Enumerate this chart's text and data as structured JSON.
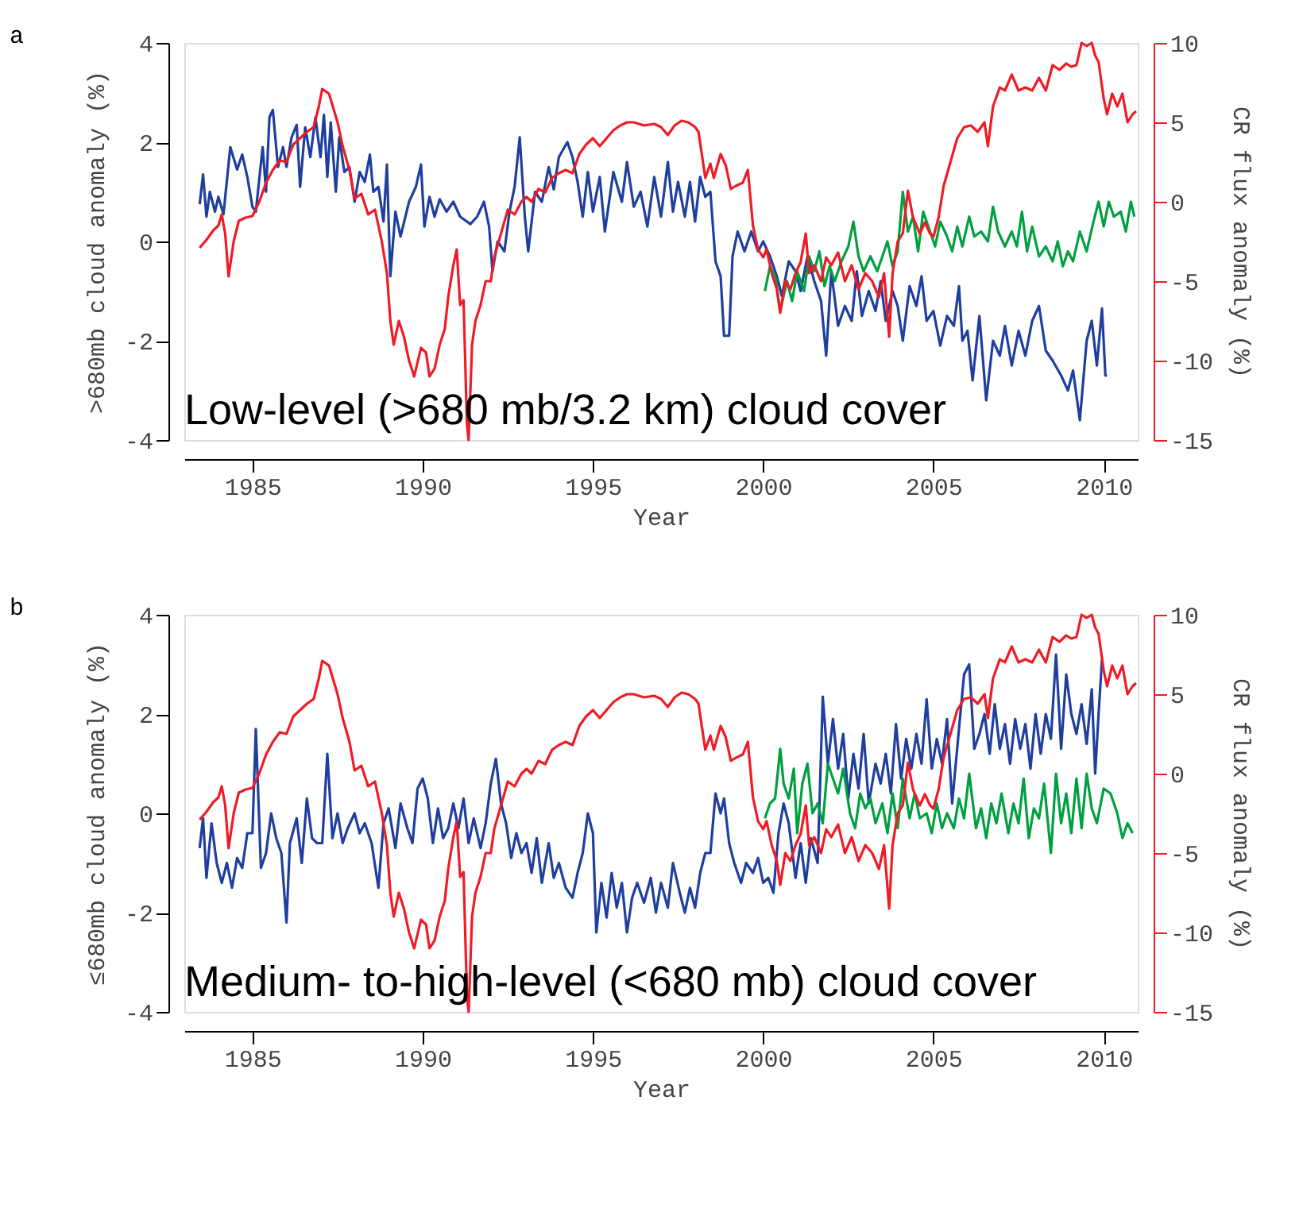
{
  "chart_data": [
    {
      "type": "line",
      "xlabel": "Year",
      "ylabel": ">680mb cloud anomaly (%)",
      "y2label": "CR flux anomaly (%)",
      "xlim": [
        1983,
        2011
      ],
      "xticks": [
        1985,
        1990,
        1995,
        2000,
        2005,
        2010
      ],
      "ylim": [
        -4,
        4
      ],
      "yticks": [
        -4,
        -2,
        0,
        2,
        4
      ],
      "y2lim": [
        -15,
        10
      ],
      "y2ticks": [
        -15,
        -10,
        -5,
        0,
        5,
        10
      ],
      "grid": false,
      "annotations": [
        "a",
        "Low-level (>680 mb/3.2 km) cloud cover"
      ],
      "series": [
        {
          "color": "#1f3f9f",
          "x": [
            1983.45,
            1983.55,
            1983.65,
            1983.75,
            1983.9,
            1984.0,
            1984.15,
            1984.35,
            1984.55,
            1984.7,
            1984.85,
            1985.0,
            1985.1,
            1985.3,
            1985.4,
            1985.5,
            1985.6,
            1985.75,
            1985.9,
            1986.0,
            1986.15,
            1986.3,
            1986.4,
            1986.55,
            1986.7,
            1986.85,
            1987.0,
            1987.1,
            1987.2,
            1987.3,
            1987.45,
            1987.55,
            1987.7,
            1987.85,
            1988.0,
            1988.15,
            1988.3,
            1988.45,
            1988.55,
            1988.7,
            1988.85,
            1988.95,
            1989.05,
            1989.2,
            1989.35,
            1989.6,
            1989.8,
            1989.95,
            1990.05,
            1990.2,
            1990.35,
            1990.5,
            1990.7,
            1990.9,
            1991.1,
            1991.4,
            1991.6,
            1991.8,
            1991.95,
            1992.05,
            1992.2,
            1992.4,
            1992.55,
            1992.7,
            1992.85,
            1993.0,
            1993.1,
            1993.3,
            1993.5,
            1993.7,
            1993.85,
            1994.0,
            1994.25,
            1994.4,
            1994.55,
            1994.7,
            1994.85,
            1995.0,
            1995.2,
            1995.35,
            1995.6,
            1995.85,
            1996.0,
            1996.2,
            1996.4,
            1996.6,
            1996.8,
            1997.0,
            1997.2,
            1997.35,
            1997.5,
            1997.7,
            1997.85,
            1998.0,
            1998.15,
            1998.3,
            1998.45,
            1998.6,
            1998.75,
            1998.85,
            1999.0,
            1999.1,
            1999.25,
            1999.45,
            1999.65,
            1999.85,
            2000.0,
            2000.2,
            2000.4,
            2000.55,
            2000.75,
            2000.95,
            2001.1,
            2001.3,
            2001.5,
            2001.7,
            2001.85,
            2002.0,
            2002.2,
            2002.4,
            2002.6,
            2002.75,
            2002.9,
            2003.1,
            2003.3,
            2003.45,
            2003.6,
            2003.8,
            2003.95,
            2004.1,
            2004.3,
            2004.5,
            2004.65,
            2004.8,
            2005.0,
            2005.2,
            2005.4,
            2005.6,
            2005.75,
            2005.85,
            2006.0,
            2006.15,
            2006.35,
            2006.55,
            2006.75,
            2006.95,
            2007.1,
            2007.3,
            2007.5,
            2007.7,
            2007.9,
            2008.1,
            2008.3,
            2008.5,
            2008.75,
            2008.95,
            2009.1,
            2009.3,
            2009.5,
            2009.65,
            2009.8,
            2009.95,
            2010.05,
            2010.1
          ],
          "values": [
            0.75,
            1.35,
            0.5,
            1.0,
            0.6,
            0.9,
            0.55,
            1.9,
            1.45,
            1.75,
            1.3,
            0.7,
            0.6,
            1.9,
            1.0,
            2.5,
            2.65,
            1.5,
            1.9,
            1.5,
            2.1,
            2.35,
            1.1,
            2.3,
            1.7,
            2.5,
            1.7,
            2.55,
            1.3,
            2.4,
            1.0,
            2.1,
            1.4,
            1.5,
            0.8,
            1.4,
            1.2,
            1.75,
            1.0,
            1.1,
            0.4,
            1.55,
            -0.7,
            0.6,
            0.1,
            0.8,
            1.1,
            1.55,
            0.3,
            0.9,
            0.5,
            0.85,
            0.6,
            0.8,
            0.5,
            0.35,
            0.5,
            0.8,
            0.3,
            -0.6,
            0.0,
            -0.2,
            0.6,
            1.1,
            2.1,
            0.5,
            -0.2,
            1.0,
            0.8,
            1.5,
            1.05,
            1.7,
            2.0,
            1.7,
            1.2,
            0.5,
            1.4,
            0.6,
            1.3,
            0.2,
            1.4,
            0.8,
            1.6,
            0.7,
            1.0,
            0.3,
            1.3,
            0.5,
            1.6,
            0.6,
            1.2,
            0.5,
            1.2,
            0.4,
            1.3,
            0.9,
            1.0,
            -0.4,
            -0.7,
            -1.9,
            -1.9,
            -0.3,
            0.2,
            -0.2,
            0.2,
            -0.2,
            0.0,
            -0.3,
            -0.7,
            -1.1,
            -0.4,
            -0.6,
            -1.0,
            -0.3,
            -0.8,
            -1.2,
            -2.3,
            -0.6,
            -1.7,
            -1.3,
            -1.6,
            -0.6,
            -1.5,
            -1.0,
            -1.4,
            -0.8,
            -1.6,
            -1.0,
            -1.3,
            -2.0,
            -0.9,
            -1.3,
            -0.7,
            -1.6,
            -1.4,
            -2.1,
            -1.5,
            -1.7,
            -0.9,
            -2.0,
            -1.8,
            -2.8,
            -1.5,
            -3.2,
            -2.0,
            -2.3,
            -1.7,
            -2.5,
            -1.8,
            -2.3,
            -1.6,
            -1.3,
            -2.2,
            -2.4,
            -2.7,
            -3.0,
            -2.6,
            -3.6,
            -2.0,
            -1.6,
            -2.5,
            -1.35,
            -2.7,
            -2.7
          ]
        },
        {
          "color": "#00a040",
          "x": [
            2000.05,
            2000.2,
            2000.35,
            2000.5,
            2000.7,
            2000.85,
            2001.0,
            2001.2,
            2001.35,
            2001.5,
            2001.65,
            2001.8,
            2001.95,
            2002.1,
            2002.3,
            2002.5,
            2002.65,
            2002.8,
            2002.95,
            2003.15,
            2003.35,
            2003.5,
            2003.65,
            2003.8,
            2003.95,
            2004.1,
            2004.25,
            2004.4,
            2004.55,
            2004.7,
            2004.9,
            2005.05,
            2005.2,
            2005.4,
            2005.55,
            2005.7,
            2005.85,
            2006.05,
            2006.2,
            2006.4,
            2006.6,
            2006.75,
            2006.9,
            2007.1,
            2007.3,
            2007.45,
            2007.6,
            2007.75,
            2007.9,
            2008.1,
            2008.3,
            2008.5,
            2008.65,
            2008.8,
            2008.95,
            2009.1,
            2009.3,
            2009.5,
            2009.7,
            2009.85,
            2010.0,
            2010.15,
            2010.3,
            2010.5,
            2010.65,
            2010.8,
            2010.9
          ],
          "values": [
            -1.0,
            -0.5,
            -0.7,
            -1.4,
            -0.8,
            -1.2,
            -0.6,
            -1.0,
            -0.3,
            -0.6,
            -0.2,
            -0.9,
            -0.5,
            -0.8,
            -0.4,
            -0.1,
            0.4,
            -0.3,
            -0.6,
            -0.3,
            -0.6,
            -0.3,
            0.0,
            -0.5,
            -0.2,
            1.0,
            0.2,
            0.5,
            -0.2,
            0.6,
            0.2,
            -0.1,
            0.4,
            0.1,
            -0.2,
            0.3,
            -0.1,
            0.5,
            0.1,
            0.2,
            0.0,
            0.7,
            0.2,
            -0.1,
            0.2,
            -0.1,
            0.6,
            -0.2,
            0.3,
            -0.3,
            -0.1,
            -0.4,
            0.0,
            -0.5,
            -0.2,
            -0.4,
            0.2,
            -0.2,
            0.4,
            0.8,
            0.3,
            0.8,
            0.5,
            0.6,
            0.2,
            0.8,
            0.5
          ]
        },
        {
          "color": "#ee1c25",
          "axis": "y2",
          "x": [
            1983.45,
            1983.65,
            1983.85,
            1984.0,
            1984.1,
            1984.2,
            1984.3,
            1984.45,
            1984.6,
            1984.8,
            1985.0,
            1985.2,
            1985.4,
            1985.6,
            1985.8,
            1986.0,
            1986.2,
            1986.4,
            1986.6,
            1986.8,
            1986.95,
            1987.05,
            1987.25,
            1987.5,
            1987.65,
            1987.85,
            1988.0,
            1988.2,
            1988.4,
            1988.6,
            1988.8,
            1988.95,
            1989.05,
            1989.15,
            1989.3,
            1989.45,
            1989.6,
            1989.75,
            1989.95,
            1990.1,
            1990.2,
            1990.35,
            1990.5,
            1990.65,
            1990.75,
            1990.9,
            1991.0,
            1991.1,
            1991.2,
            1991.3,
            1991.35,
            1991.45,
            1991.55,
            1991.7,
            1991.85,
            1992.0,
            1992.1,
            1992.3,
            1992.5,
            1992.7,
            1992.9,
            1993.05,
            1993.2,
            1993.4,
            1993.6,
            1993.8,
            1994.0,
            1994.2,
            1994.4,
            1994.6,
            1994.8,
            1995.0,
            1995.2,
            1995.4,
            1995.6,
            1995.8,
            1996.0,
            1996.2,
            1996.5,
            1996.8,
            1997.0,
            1997.2,
            1997.4,
            1997.6,
            1997.8,
            1998.0,
            1998.1,
            1998.3,
            1998.45,
            1998.55,
            1998.75,
            1998.9,
            1999.05,
            1999.2,
            1999.4,
            1999.55,
            1999.7,
            1999.85,
            2000.0,
            2000.1,
            2000.25,
            2000.4,
            2000.5,
            2000.65,
            2000.8,
            2000.95,
            2001.1,
            2001.25,
            2001.35,
            2001.5,
            2001.7,
            2001.85,
            2002.0,
            2002.2,
            2002.4,
            2002.6,
            2002.8,
            2003.0,
            2003.2,
            2003.4,
            2003.55,
            2003.7,
            2003.8,
            2003.95,
            2004.1,
            2004.25,
            2004.4,
            2004.6,
            2004.75,
            2004.9,
            2005.0,
            2005.15,
            2005.3,
            2005.5,
            2005.7,
            2005.9,
            2006.1,
            2006.3,
            2006.5,
            2006.6,
            2006.75,
            2006.95,
            2007.1,
            2007.3,
            2007.5,
            2007.7,
            2007.9,
            2008.1,
            2008.3,
            2008.5,
            2008.7,
            2008.9,
            2009.05,
            2009.2,
            2009.35,
            2009.5,
            2009.65,
            2009.75,
            2009.85,
            2010.0,
            2010.1,
            2010.25,
            2010.4,
            2010.55,
            2010.7,
            2010.85,
            2010.95
          ],
          "values": [
            -2.9,
            -2.4,
            -1.8,
            -1.5,
            -0.8,
            -2.0,
            -4.7,
            -2.5,
            -1.2,
            -1.0,
            -0.9,
            0.0,
            1.2,
            2.0,
            2.6,
            2.5,
            3.6,
            4.0,
            4.4,
            4.7,
            6.0,
            7.1,
            6.8,
            5.0,
            3.5,
            2.0,
            0.2,
            0.5,
            -0.8,
            -0.5,
            -2.5,
            -4.5,
            -7.5,
            -9.0,
            -7.5,
            -8.5,
            -10.0,
            -11.0,
            -9.2,
            -9.5,
            -11.0,
            -10.5,
            -9.0,
            -8.0,
            -6.0,
            -4.0,
            -3.0,
            -6.5,
            -6.2,
            -14.0,
            -15.0,
            -9.0,
            -7.5,
            -6.5,
            -5.0,
            -5.0,
            -3.5,
            -2.0,
            -0.5,
            -0.8,
            0.0,
            0.3,
            0.0,
            0.8,
            0.6,
            1.5,
            1.8,
            2.0,
            1.8,
            3.0,
            3.6,
            4.0,
            3.5,
            4.0,
            4.5,
            4.8,
            5.0,
            5.0,
            4.8,
            4.9,
            4.7,
            4.2,
            4.8,
            5.1,
            5.0,
            4.7,
            4.4,
            1.5,
            2.4,
            1.5,
            3.0,
            2.3,
            0.8,
            1.0,
            1.2,
            2.0,
            -1.5,
            -3.0,
            -3.5,
            -3.0,
            -4.5,
            -5.5,
            -7.0,
            -5.0,
            -5.5,
            -4.5,
            -3.8,
            -2.0,
            -4.5,
            -4.0,
            -5.0,
            -3.5,
            -4.0,
            -3.2,
            -5.0,
            -4.0,
            -5.5,
            -4.5,
            -5.0,
            -6.0,
            -4.5,
            -8.5,
            -4.5,
            -2.5,
            -2.0,
            0.7,
            -1.0,
            -2.0,
            -1.3,
            -2.0,
            -2.2,
            -1.0,
            1.0,
            2.5,
            4.0,
            4.7,
            4.8,
            4.4,
            5.0,
            3.5,
            6.0,
            7.2,
            7.0,
            8.0,
            7.0,
            7.2,
            7.0,
            7.8,
            7.0,
            8.6,
            8.3,
            8.7,
            8.5,
            8.6,
            10.0,
            9.8,
            10.0,
            9.2,
            8.8,
            6.5,
            5.5,
            6.8,
            6.0,
            6.8,
            5.0,
            5.5,
            5.7
          ]
        }
      ]
    },
    {
      "type": "line",
      "xlabel": "Year",
      "ylabel": "≤680mb cloud anomaly (%)",
      "y2label": "CR flux anomaly (%)",
      "xlim": [
        1983,
        2011
      ],
      "xticks": [
        1985,
        1990,
        1995,
        2000,
        2005,
        2010
      ],
      "ylim": [
        -4,
        4
      ],
      "yticks": [
        -4,
        -2,
        0,
        2,
        4
      ],
      "y2lim": [
        -15,
        10
      ],
      "y2ticks": [
        -15,
        -10,
        -5,
        0,
        5,
        10
      ],
      "grid": false,
      "annotations": [
        "b",
        "Medium- to-high-level (<680 mb) cloud cover"
      ],
      "series": [
        {
          "color": "#1f3f9f",
          "x": [
            1983.45,
            1983.55,
            1983.65,
            1983.8,
            1983.95,
            1984.1,
            1984.25,
            1984.4,
            1984.55,
            1984.7,
            1984.85,
            1985.0,
            1985.1,
            1985.25,
            1985.4,
            1985.55,
            1985.7,
            1985.85,
            1986.0,
            1986.1,
            1986.3,
            1986.45,
            1986.6,
            1986.75,
            1986.9,
            1987.05,
            1987.2,
            1987.35,
            1987.5,
            1987.65,
            1987.8,
            1988.0,
            1988.15,
            1988.3,
            1988.5,
            1988.7,
            1988.85,
            1989.0,
            1989.2,
            1989.35,
            1989.55,
            1989.7,
            1989.85,
            1990.0,
            1990.15,
            1990.3,
            1990.45,
            1990.6,
            1990.75,
            1990.9,
            1991.05,
            1991.2,
            1991.35,
            1991.5,
            1991.7,
            1991.85,
            1992.0,
            1992.15,
            1992.3,
            1992.45,
            1992.6,
            1992.75,
            1992.9,
            1993.05,
            1993.2,
            1993.35,
            1993.5,
            1993.7,
            1993.85,
            1994.0,
            1994.2,
            1994.4,
            1994.55,
            1994.7,
            1994.85,
            1995.0,
            1995.1,
            1995.25,
            1995.4,
            1995.55,
            1995.7,
            1995.85,
            1996.0,
            1996.15,
            1996.3,
            1996.5,
            1996.7,
            1996.85,
            1997.0,
            1997.2,
            1997.35,
            1997.55,
            1997.7,
            1997.85,
            1998.0,
            1998.15,
            1998.3,
            1998.45,
            1998.6,
            1998.75,
            1998.85,
            1999.0,
            1999.15,
            1999.35,
            1999.5,
            1999.7,
            1999.85,
            2000.0,
            2000.15,
            2000.3,
            2000.45,
            2000.6,
            2000.75,
            2000.95,
            2001.1,
            2001.25,
            2001.4,
            2001.6,
            2001.75,
            2001.9,
            2002.05,
            2002.2,
            2002.35,
            2002.5,
            2002.65,
            2002.8,
            2002.95,
            2003.1,
            2003.3,
            2003.45,
            2003.6,
            2003.75,
            2003.9,
            2004.05,
            2004.2,
            2004.35,
            2004.5,
            2004.65,
            2004.8,
            2004.95,
            2005.1,
            2005.25,
            2005.4,
            2005.55,
            2005.75,
            2005.9,
            2006.05,
            2006.2,
            2006.35,
            2006.5,
            2006.65,
            2006.8,
            2006.95,
            2007.1,
            2007.25,
            2007.4,
            2007.55,
            2007.7,
            2007.85,
            2008.0,
            2008.15,
            2008.3,
            2008.45,
            2008.6,
            2008.75,
            2008.9,
            2009.05,
            2009.2,
            2009.35,
            2009.5,
            2009.65,
            2009.75,
            2009.85,
            2009.95
          ],
          "values": [
            -0.7,
            -0.1,
            -1.3,
            -0.2,
            -1.0,
            -1.4,
            -1.0,
            -1.5,
            -0.9,
            -1.1,
            -0.4,
            -0.4,
            1.7,
            -1.1,
            -0.8,
            0.0,
            -0.5,
            -0.8,
            -2.2,
            -0.6,
            -0.1,
            -1.0,
            0.3,
            -0.5,
            -0.6,
            -0.6,
            1.2,
            -0.5,
            0.0,
            -0.6,
            -0.3,
            0.0,
            -0.4,
            -0.2,
            -0.6,
            -1.5,
            -0.2,
            0.1,
            -0.7,
            0.2,
            -0.3,
            -0.6,
            0.5,
            0.7,
            0.3,
            -0.6,
            0.1,
            -0.5,
            -0.3,
            0.2,
            -0.3,
            0.3,
            -0.6,
            -0.1,
            -0.7,
            -0.2,
            0.6,
            1.1,
            0.2,
            -0.2,
            -0.9,
            -0.4,
            -0.8,
            -0.6,
            -1.2,
            -0.5,
            -1.4,
            -0.6,
            -1.3,
            -1.0,
            -1.5,
            -1.7,
            -1.2,
            -0.8,
            0.0,
            -0.4,
            -2.4,
            -1.4,
            -2.1,
            -1.2,
            -1.9,
            -1.4,
            -2.4,
            -1.7,
            -1.4,
            -1.8,
            -1.3,
            -2.0,
            -1.4,
            -1.9,
            -1.0,
            -1.6,
            -2.0,
            -1.5,
            -1.9,
            -1.2,
            -0.8,
            -0.8,
            0.4,
            0.0,
            0.3,
            -0.6,
            -1.0,
            -1.4,
            -1.0,
            -1.2,
            -0.9,
            -1.4,
            -1.3,
            -1.6,
            -0.4,
            0.2,
            -0.2,
            -1.3,
            -0.6,
            -1.4,
            -0.5,
            -1.0,
            2.35,
            1.0,
            1.9,
            0.9,
            1.6,
            0.3,
            1.2,
            0.5,
            1.6,
            0.2,
            1.0,
            0.6,
            1.2,
            0.4,
            1.8,
            0.7,
            1.5,
            0.9,
            1.6,
            1.0,
            2.3,
            0.9,
            1.5,
            1.0,
            1.9,
            0.2,
            1.7,
            2.8,
            3.0,
            1.3,
            1.6,
            2.0,
            1.2,
            2.2,
            1.3,
            1.8,
            1.0,
            1.9,
            1.3,
            1.8,
            0.9,
            2.0,
            1.2,
            2.0,
            1.5,
            3.2,
            1.3,
            2.8,
            2.0,
            1.6,
            2.2,
            1.4,
            2.5,
            0.8,
            2.0,
            3.1
          ]
        },
        {
          "color": "#00a040",
          "x": [
            2000.05,
            2000.2,
            2000.35,
            2000.5,
            2000.6,
            2000.75,
            2000.9,
            2001.0,
            2001.15,
            2001.3,
            2001.45,
            2001.6,
            2001.75,
            2001.9,
            2002.05,
            2002.2,
            2002.35,
            2002.55,
            2002.7,
            2002.85,
            2003.0,
            2003.15,
            2003.3,
            2003.5,
            2003.65,
            2003.8,
            2003.95,
            2004.1,
            2004.3,
            2004.45,
            2004.6,
            2004.8,
            2004.95,
            2005.1,
            2005.25,
            2005.4,
            2005.6,
            2005.75,
            2005.9,
            2006.05,
            2006.25,
            2006.4,
            2006.55,
            2006.7,
            2006.85,
            2007.0,
            2007.2,
            2007.35,
            2007.5,
            2007.65,
            2007.8,
            2007.95,
            2008.1,
            2008.25,
            2008.45,
            2008.6,
            2008.75,
            2008.9,
            2009.05,
            2009.2,
            2009.35,
            2009.5,
            2009.65,
            2009.8,
            2010.0,
            2010.2,
            2010.4,
            2010.55,
            2010.7,
            2010.85
          ],
          "values": [
            -0.1,
            0.2,
            0.3,
            1.3,
            0.6,
            0.3,
            0.9,
            -0.4,
            0.6,
            1.0,
            0.0,
            0.2,
            -0.2,
            1.0,
            0.7,
            0.4,
            0.9,
            0.0,
            -0.3,
            0.4,
            0.1,
            0.3,
            -0.2,
            0.2,
            -0.4,
            0.4,
            -0.3,
            0.7,
            -0.1,
            0.4,
            -0.1,
            0.0,
            -0.4,
            0.2,
            -0.3,
            0.0,
            -0.3,
            0.3,
            -0.1,
            0.8,
            -0.3,
            0.1,
            -0.5,
            0.2,
            -0.2,
            0.4,
            -0.4,
            0.2,
            -0.2,
            0.7,
            -0.5,
            0.1,
            -0.1,
            0.6,
            -0.8,
            0.8,
            -0.2,
            0.4,
            -0.4,
            0.7,
            -0.3,
            0.8,
            0.1,
            -0.2,
            0.5,
            0.4,
            0.0,
            -0.5,
            -0.2,
            -0.4
          ]
        },
        {
          "color": "#ee1c25",
          "axis": "y2",
          "x": [
            1983.45,
            1983.65,
            1983.85,
            1984.0,
            1984.1,
            1984.2,
            1984.3,
            1984.45,
            1984.6,
            1984.8,
            1985.0,
            1985.2,
            1985.4,
            1985.6,
            1985.8,
            1986.0,
            1986.2,
            1986.4,
            1986.6,
            1986.8,
            1986.95,
            1987.05,
            1987.25,
            1987.5,
            1987.65,
            1987.85,
            1988.0,
            1988.2,
            1988.4,
            1988.6,
            1988.8,
            1988.95,
            1989.05,
            1989.15,
            1989.3,
            1989.45,
            1989.6,
            1989.75,
            1989.95,
            1990.1,
            1990.2,
            1990.35,
            1990.5,
            1990.65,
            1990.75,
            1990.9,
            1991.0,
            1991.1,
            1991.2,
            1991.3,
            1991.35,
            1991.45,
            1991.55,
            1991.7,
            1991.85,
            1992.0,
            1992.1,
            1992.3,
            1992.5,
            1992.7,
            1992.9,
            1993.05,
            1993.2,
            1993.4,
            1993.6,
            1993.8,
            1994.0,
            1994.2,
            1994.4,
            1994.6,
            1994.8,
            1995.0,
            1995.2,
            1995.4,
            1995.6,
            1995.8,
            1996.0,
            1996.2,
            1996.5,
            1996.8,
            1997.0,
            1997.2,
            1997.4,
            1997.6,
            1997.8,
            1998.0,
            1998.1,
            1998.3,
            1998.45,
            1998.55,
            1998.75,
            1998.9,
            1999.05,
            1999.2,
            1999.4,
            1999.55,
            1999.7,
            1999.85,
            2000.0,
            2000.1,
            2000.25,
            2000.4,
            2000.5,
            2000.65,
            2000.8,
            2000.95,
            2001.1,
            2001.25,
            2001.35,
            2001.5,
            2001.7,
            2001.85,
            2002.0,
            2002.2,
            2002.4,
            2002.6,
            2002.8,
            2003.0,
            2003.2,
            2003.4,
            2003.55,
            2003.7,
            2003.8,
            2003.95,
            2004.1,
            2004.25,
            2004.4,
            2004.6,
            2004.75,
            2004.9,
            2005.0,
            2005.15,
            2005.3,
            2005.5,
            2005.7,
            2005.9,
            2006.1,
            2006.3,
            2006.5,
            2006.6,
            2006.75,
            2006.95,
            2007.1,
            2007.3,
            2007.5,
            2007.7,
            2007.9,
            2008.1,
            2008.3,
            2008.5,
            2008.7,
            2008.9,
            2009.05,
            2009.2,
            2009.35,
            2009.5,
            2009.65,
            2009.75,
            2009.85,
            2010.0,
            2010.1,
            2010.25,
            2010.4,
            2010.55,
            2010.7,
            2010.85,
            2010.95
          ],
          "values": [
            -2.9,
            -2.4,
            -1.8,
            -1.5,
            -0.8,
            -2.0,
            -4.7,
            -2.5,
            -1.2,
            -1.0,
            -0.9,
            0.0,
            1.2,
            2.0,
            2.6,
            2.5,
            3.6,
            4.0,
            4.4,
            4.7,
            6.0,
            7.1,
            6.8,
            5.0,
            3.5,
            2.0,
            0.2,
            0.5,
            -0.8,
            -0.5,
            -2.5,
            -4.5,
            -7.5,
            -9.0,
            -7.5,
            -8.5,
            -10.0,
            -11.0,
            -9.2,
            -9.5,
            -11.0,
            -10.5,
            -9.0,
            -8.0,
            -6.0,
            -4.0,
            -3.0,
            -6.5,
            -6.2,
            -14.0,
            -15.0,
            -9.0,
            -7.5,
            -6.5,
            -5.0,
            -5.0,
            -3.5,
            -2.0,
            -0.5,
            -0.8,
            0.0,
            0.3,
            0.0,
            0.8,
            0.6,
            1.5,
            1.8,
            2.0,
            1.8,
            3.0,
            3.6,
            4.0,
            3.5,
            4.0,
            4.5,
            4.8,
            5.0,
            5.0,
            4.8,
            4.9,
            4.7,
            4.2,
            4.8,
            5.1,
            5.0,
            4.7,
            4.4,
            1.5,
            2.4,
            1.5,
            3.0,
            2.3,
            0.8,
            1.0,
            1.2,
            2.0,
            -1.5,
            -3.0,
            -3.5,
            -3.0,
            -4.5,
            -5.5,
            -7.0,
            -5.0,
            -5.5,
            -4.5,
            -3.8,
            -2.0,
            -4.5,
            -4.0,
            -5.0,
            -3.5,
            -4.0,
            -3.2,
            -5.0,
            -4.0,
            -5.5,
            -4.5,
            -5.0,
            -6.0,
            -4.5,
            -8.5,
            -4.5,
            -2.5,
            -2.0,
            0.7,
            -1.0,
            -2.0,
            -1.3,
            -2.0,
            -2.2,
            -1.0,
            1.0,
            2.5,
            4.0,
            4.7,
            4.8,
            4.4,
            5.0,
            3.5,
            6.0,
            7.2,
            7.0,
            8.0,
            7.0,
            7.2,
            7.0,
            7.8,
            7.0,
            8.6,
            8.3,
            8.7,
            8.5,
            8.6,
            10.0,
            9.8,
            10.0,
            9.2,
            8.8,
            6.5,
            5.5,
            6.8,
            6.0,
            6.8,
            5.0,
            5.5,
            5.7
          ]
        }
      ]
    }
  ]
}
